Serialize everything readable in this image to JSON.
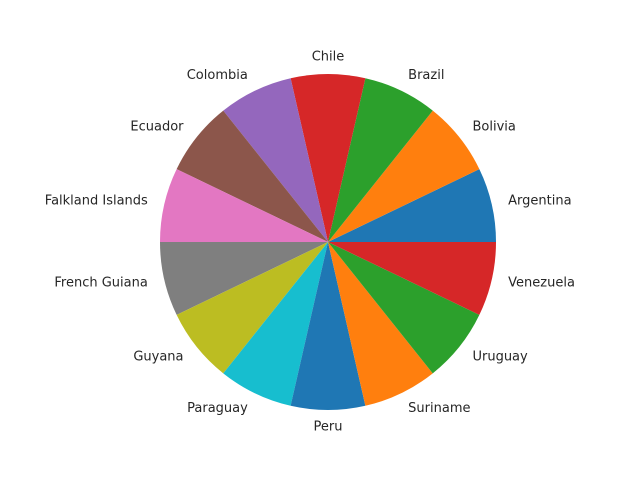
{
  "chart_data": {
    "type": "pie",
    "title": "",
    "start_angle_deg": 0,
    "direction": "counterclockwise",
    "labels": [
      "Argentina",
      "Bolivia",
      "Brazil",
      "Chile",
      "Colombia",
      "Ecuador",
      "Falkland Islands",
      "French Guiana",
      "Guyana",
      "Paraguay",
      "Peru",
      "Suriname",
      "Uruguay",
      "Venezuela"
    ],
    "values": [
      1,
      1,
      1,
      1,
      1,
      1,
      1,
      1,
      1,
      1,
      1,
      1,
      1,
      1
    ],
    "colors": [
      "#1f77b4",
      "#ff7f0e",
      "#2ca02c",
      "#d62728",
      "#9467bd",
      "#8c564b",
      "#e377c2",
      "#7f7f7f",
      "#bcbd22",
      "#17becf",
      "#1f77b4",
      "#ff7f0e",
      "#2ca02c",
      "#d62728"
    ]
  }
}
